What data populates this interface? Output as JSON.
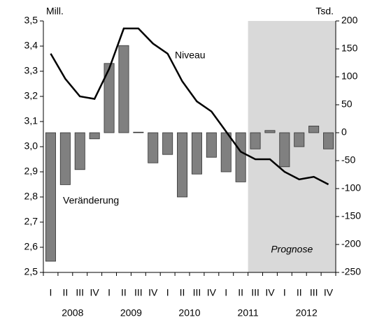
{
  "chart_data": {
    "type": "bar-line",
    "categories": [
      "I",
      "II",
      "III",
      "IV",
      "I",
      "II",
      "III",
      "IV",
      "I",
      "II",
      "III",
      "IV",
      "I",
      "II",
      "III",
      "IV",
      "I",
      "II",
      "III",
      "IV"
    ],
    "year_labels": [
      "2008",
      "2009",
      "2010",
      "2011",
      "2012"
    ],
    "ylabel": "Mill.",
    "y2label": "Tsd.",
    "ylim": [
      2.5,
      3.5
    ],
    "yticks": [
      {
        "value": 2.5,
        "label": "2,5"
      },
      {
        "value": 2.6,
        "label": "2,6"
      },
      {
        "value": 2.7,
        "label": "2,7"
      },
      {
        "value": 2.8,
        "label": "2,8"
      },
      {
        "value": 2.9,
        "label": "2,9"
      },
      {
        "value": 3.0,
        "label": "3,0"
      },
      {
        "value": 3.1,
        "label": "3,1"
      },
      {
        "value": 3.2,
        "label": "3,2"
      },
      {
        "value": 3.3,
        "label": "3,3"
      },
      {
        "value": 3.4,
        "label": "3,4"
      },
      {
        "value": 3.5,
        "label": "3,5"
      }
    ],
    "y2lim": [
      -250,
      200
    ],
    "y2ticks": [
      -250,
      -200,
      -150,
      -100,
      -50,
      0,
      50,
      100,
      150,
      200
    ],
    "forecast": {
      "label": "Prognose",
      "start": 14,
      "color": "#d9d9d9"
    },
    "series": [
      {
        "name": "Veränderung",
        "type": "bar",
        "axis": "y2",
        "color": "#808080",
        "values": [
          -230,
          -93,
          -66,
          -11,
          124,
          156,
          1,
          -54,
          -39,
          -115,
          -74,
          -44,
          -70,
          -88,
          -29,
          4,
          -61,
          -25,
          12,
          -29
        ]
      },
      {
        "name": "Niveau",
        "type": "line",
        "axis": "y",
        "color": "#000000",
        "values": [
          3.37,
          3.27,
          3.2,
          3.19,
          3.31,
          3.47,
          3.47,
          3.41,
          3.37,
          3.26,
          3.18,
          3.14,
          3.06,
          2.98,
          2.95,
          2.95,
          2.9,
          2.87,
          2.88,
          2.85
        ]
      }
    ]
  }
}
